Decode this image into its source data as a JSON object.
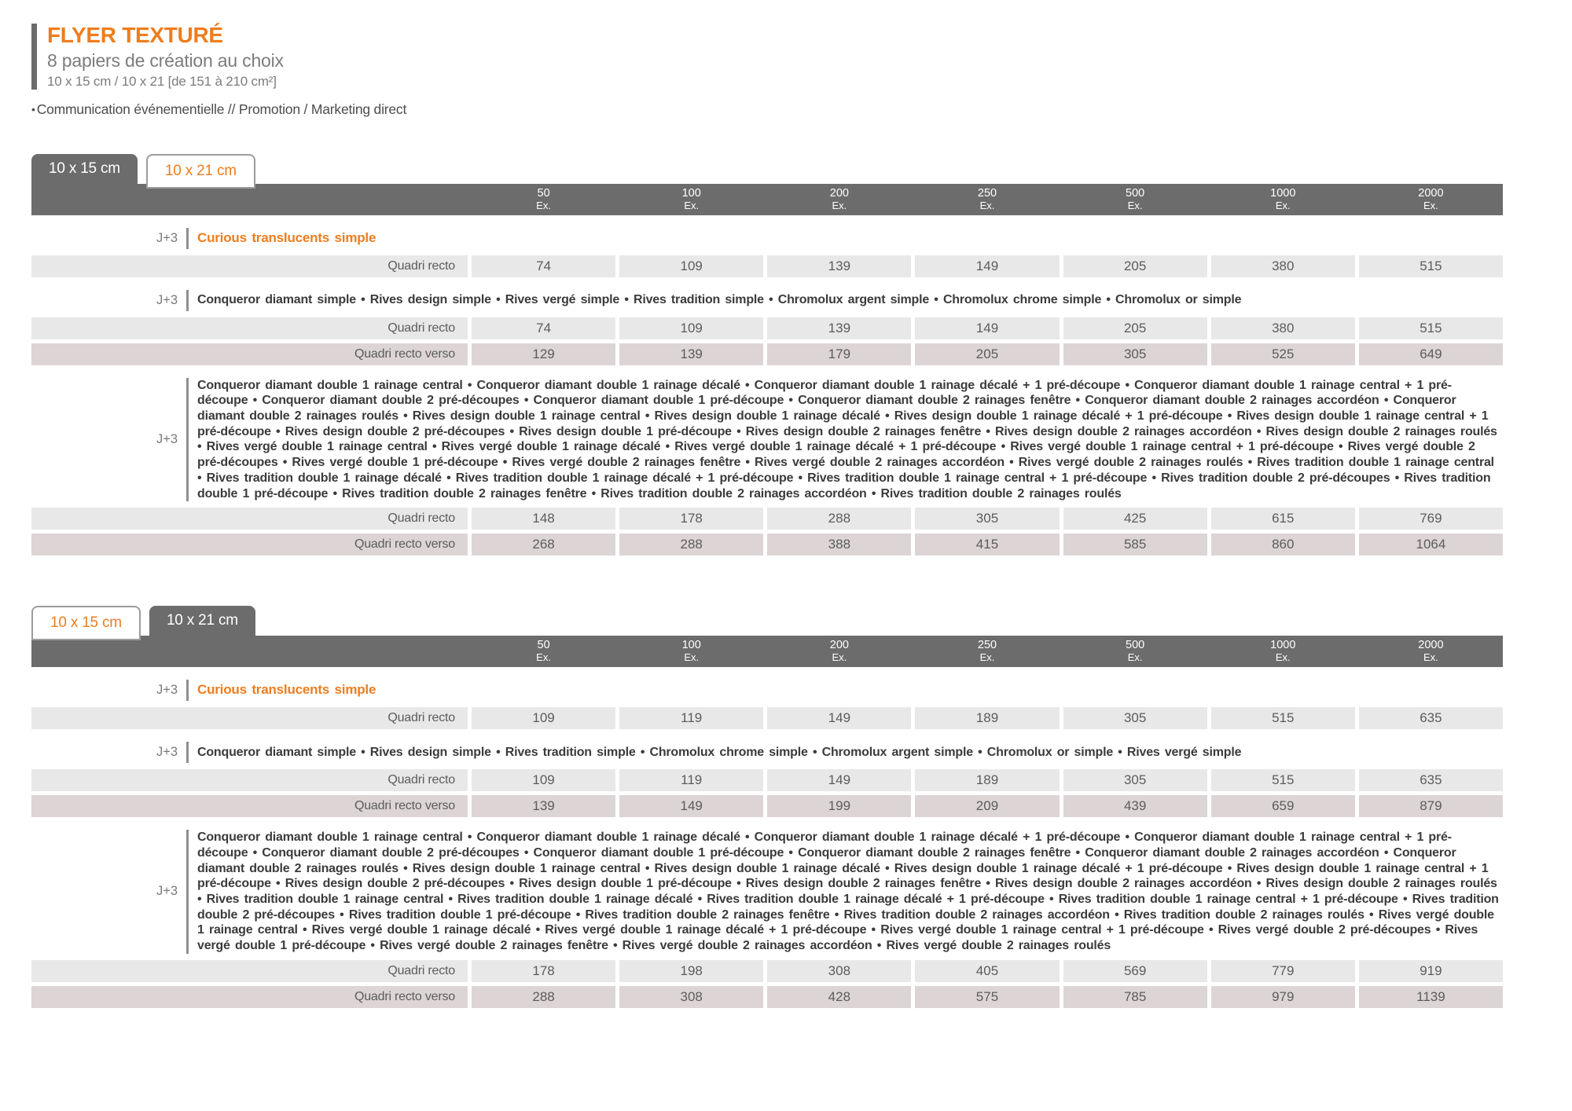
{
  "page": {
    "title": "FLYER TEXTURÉ",
    "subtitle": "8 papiers de création au choix",
    "formats": "10 x 15 cm / 10 x 21 [de 151 à 210 cm²]",
    "usage_bullet": "•",
    "usage": "Communication événementielle // Promotion / Marketing direct"
  },
  "columns": [
    {
      "qty": "50",
      "unit": "Ex."
    },
    {
      "qty": "100",
      "unit": "Ex."
    },
    {
      "qty": "200",
      "unit": "Ex."
    },
    {
      "qty": "250",
      "unit": "Ex."
    },
    {
      "qty": "500",
      "unit": "Ex."
    },
    {
      "qty": "1000",
      "unit": "Ex."
    },
    {
      "qty": "2000",
      "unit": "Ex."
    }
  ],
  "tables": [
    {
      "name": "10x15",
      "tabs": [
        {
          "label": "10 x 15 cm",
          "active": true
        },
        {
          "label": "10 x 21 cm",
          "active": false
        }
      ],
      "groups": [
        {
          "delay": "J+3",
          "accent": true,
          "papers": "Curious translucents simple",
          "rows": [
            {
              "label": "Quadri recto",
              "type": "recto",
              "values": [
                "74",
                "109",
                "139",
                "149",
                "205",
                "380",
                "515"
              ]
            }
          ]
        },
        {
          "delay": "J+3",
          "accent": false,
          "papers": "Conqueror diamant simple • Rives design simple • Rives vergé simple • Rives tradition simple • Chromolux argent simple • Chromolux chrome simple • Chromolux or simple",
          "rows": [
            {
              "label": "Quadri recto",
              "type": "recto",
              "values": [
                "74",
                "109",
                "139",
                "149",
                "205",
                "380",
                "515"
              ]
            },
            {
              "label": "Quadri recto verso",
              "type": "verso",
              "values": [
                "129",
                "139",
                "179",
                "205",
                "305",
                "525",
                "649"
              ]
            }
          ]
        },
        {
          "delay": "J+3",
          "accent": false,
          "papers": "Conqueror diamant double 1 rainage central • Conqueror diamant double 1 rainage décalé • Conqueror diamant double 1 rainage décalé + 1 pré-découpe • Conqueror diamant double 1 rainage central + 1 pré-découpe • Conqueror diamant double 2 pré-découpes • Conqueror diamant double 1 pré-découpe • Conqueror diamant double 2 rainages fenêtre • Conqueror diamant double 2 rainages accordéon • Conqueror diamant double 2 rainages roulés • Rives design double 1 rainage central • Rives design double 1 rainage décalé • Rives design double 1 rainage décalé + 1 pré-découpe • Rives design double 1 rainage central + 1 pré-découpe • Rives design double 2 pré-découpes • Rives design double 1 pré-découpe • Rives design double 2 rainages fenêtre • Rives design double 2 rainages accordéon • Rives design double 2 rainages roulés • Rives vergé double 1 rainage central • Rives vergé double 1 rainage décalé • Rives vergé double 1 rainage décalé + 1 pré-découpe • Rives vergé double 1 rainage central + 1 pré-découpe • Rives vergé double 2 pré-découpes • Rives vergé double 1 pré-découpe • Rives vergé double 2 rainages fenêtre • Rives vergé double 2 rainages accordéon • Rives vergé double 2 rainages roulés • Rives tradition double 1 rainage central • Rives tradition double 1 rainage décalé • Rives tradition double 1 rainage décalé + 1 pré-découpe • Rives tradition double 1 rainage central + 1 pré-découpe • Rives tradition double 2 pré-découpes • Rives tradition double 1 pré-découpe • Rives tradition double 2 rainages fenêtre • Rives tradition double 2 rainages accordéon • Rives tradition double 2 rainages roulés",
          "rows": [
            {
              "label": "Quadri recto",
              "type": "recto",
              "values": [
                "148",
                "178",
                "288",
                "305",
                "425",
                "615",
                "769"
              ]
            },
            {
              "label": "Quadri recto verso",
              "type": "verso",
              "values": [
                "268",
                "288",
                "388",
                "415",
                "585",
                "860",
                "1064"
              ]
            }
          ]
        }
      ]
    },
    {
      "name": "10x21",
      "tabs": [
        {
          "label": "10 x 15 cm",
          "active": false
        },
        {
          "label": "10 x 21 cm",
          "active": true
        }
      ],
      "groups": [
        {
          "delay": "J+3",
          "accent": true,
          "papers": "Curious translucents simple",
          "rows": [
            {
              "label": "Quadri recto",
              "type": "recto",
              "values": [
                "109",
                "119",
                "149",
                "189",
                "305",
                "515",
                "635"
              ]
            }
          ]
        },
        {
          "delay": "J+3",
          "accent": false,
          "papers": "Conqueror diamant simple • Rives design simple • Rives tradition simple • Chromolux chrome simple • Chromolux argent simple • Chromolux or simple • Rives vergé simple",
          "rows": [
            {
              "label": "Quadri recto",
              "type": "recto",
              "values": [
                "109",
                "119",
                "149",
                "189",
                "305",
                "515",
                "635"
              ]
            },
            {
              "label": "Quadri recto verso",
              "type": "verso",
              "values": [
                "139",
                "149",
                "199",
                "209",
                "439",
                "659",
                "879"
              ]
            }
          ]
        },
        {
          "delay": "J+3",
          "accent": false,
          "papers": "Conqueror diamant double 1 rainage central • Conqueror diamant double 1 rainage décalé • Conqueror diamant double 1 rainage décalé + 1 pré-découpe • Conqueror diamant double 1 rainage central + 1 pré-découpe • Conqueror diamant double 2 pré-découpes • Conqueror diamant double 1 pré-découpe • Conqueror diamant double 2 rainages fenêtre • Conqueror diamant double 2 rainages accordéon • Conqueror diamant double 2 rainages roulés • Rives design double 1 rainage central • Rives design double 1 rainage décalé • Rives design double 1 rainage décalé + 1 pré-découpe • Rives design double 1 rainage central + 1 pré-découpe • Rives design double 2 pré-découpes • Rives design double 1 pré-découpe • Rives design double 2 rainages fenêtre • Rives design double 2 rainages accordéon • Rives design double 2 rainages roulés • Rives tradition double 1 rainage central • Rives tradition double 1 rainage décalé • Rives tradition double 1 rainage décalé + 1 pré-découpe • Rives tradition double 1 rainage central + 1 pré-découpe • Rives tradition double 2 pré-découpes • Rives tradition double 1 pré-découpe • Rives tradition double 2 rainages fenêtre • Rives tradition double 2 rainages accordéon • Rives tradition double 2 rainages roulés • Rives vergé double 1 rainage central • Rives vergé double 1 rainage décalé • Rives vergé double 1 rainage décalé + 1 pré-découpe • Rives vergé double 1 rainage central + 1 pré-découpe • Rives vergé double 2 pré-découpes • Rives vergé double 1 pré-découpe • Rives vergé double 2 rainages fenêtre • Rives vergé double 2 rainages accordéon • Rives vergé double 2 rainages roulés",
          "rows": [
            {
              "label": "Quadri recto",
              "type": "recto",
              "values": [
                "178",
                "198",
                "308",
                "405",
                "569",
                "779",
                "919"
              ]
            },
            {
              "label": "Quadri recto verso",
              "type": "verso",
              "values": [
                "288",
                "308",
                "428",
                "575",
                "785",
                "979",
                "1139"
              ]
            }
          ]
        }
      ]
    }
  ],
  "colors": {
    "accent_orange": "#ee7d1e",
    "dark_gray": "#6c6c6c",
    "row_gray": "#e9e8e8",
    "row_rose": "#ddd5d5"
  }
}
